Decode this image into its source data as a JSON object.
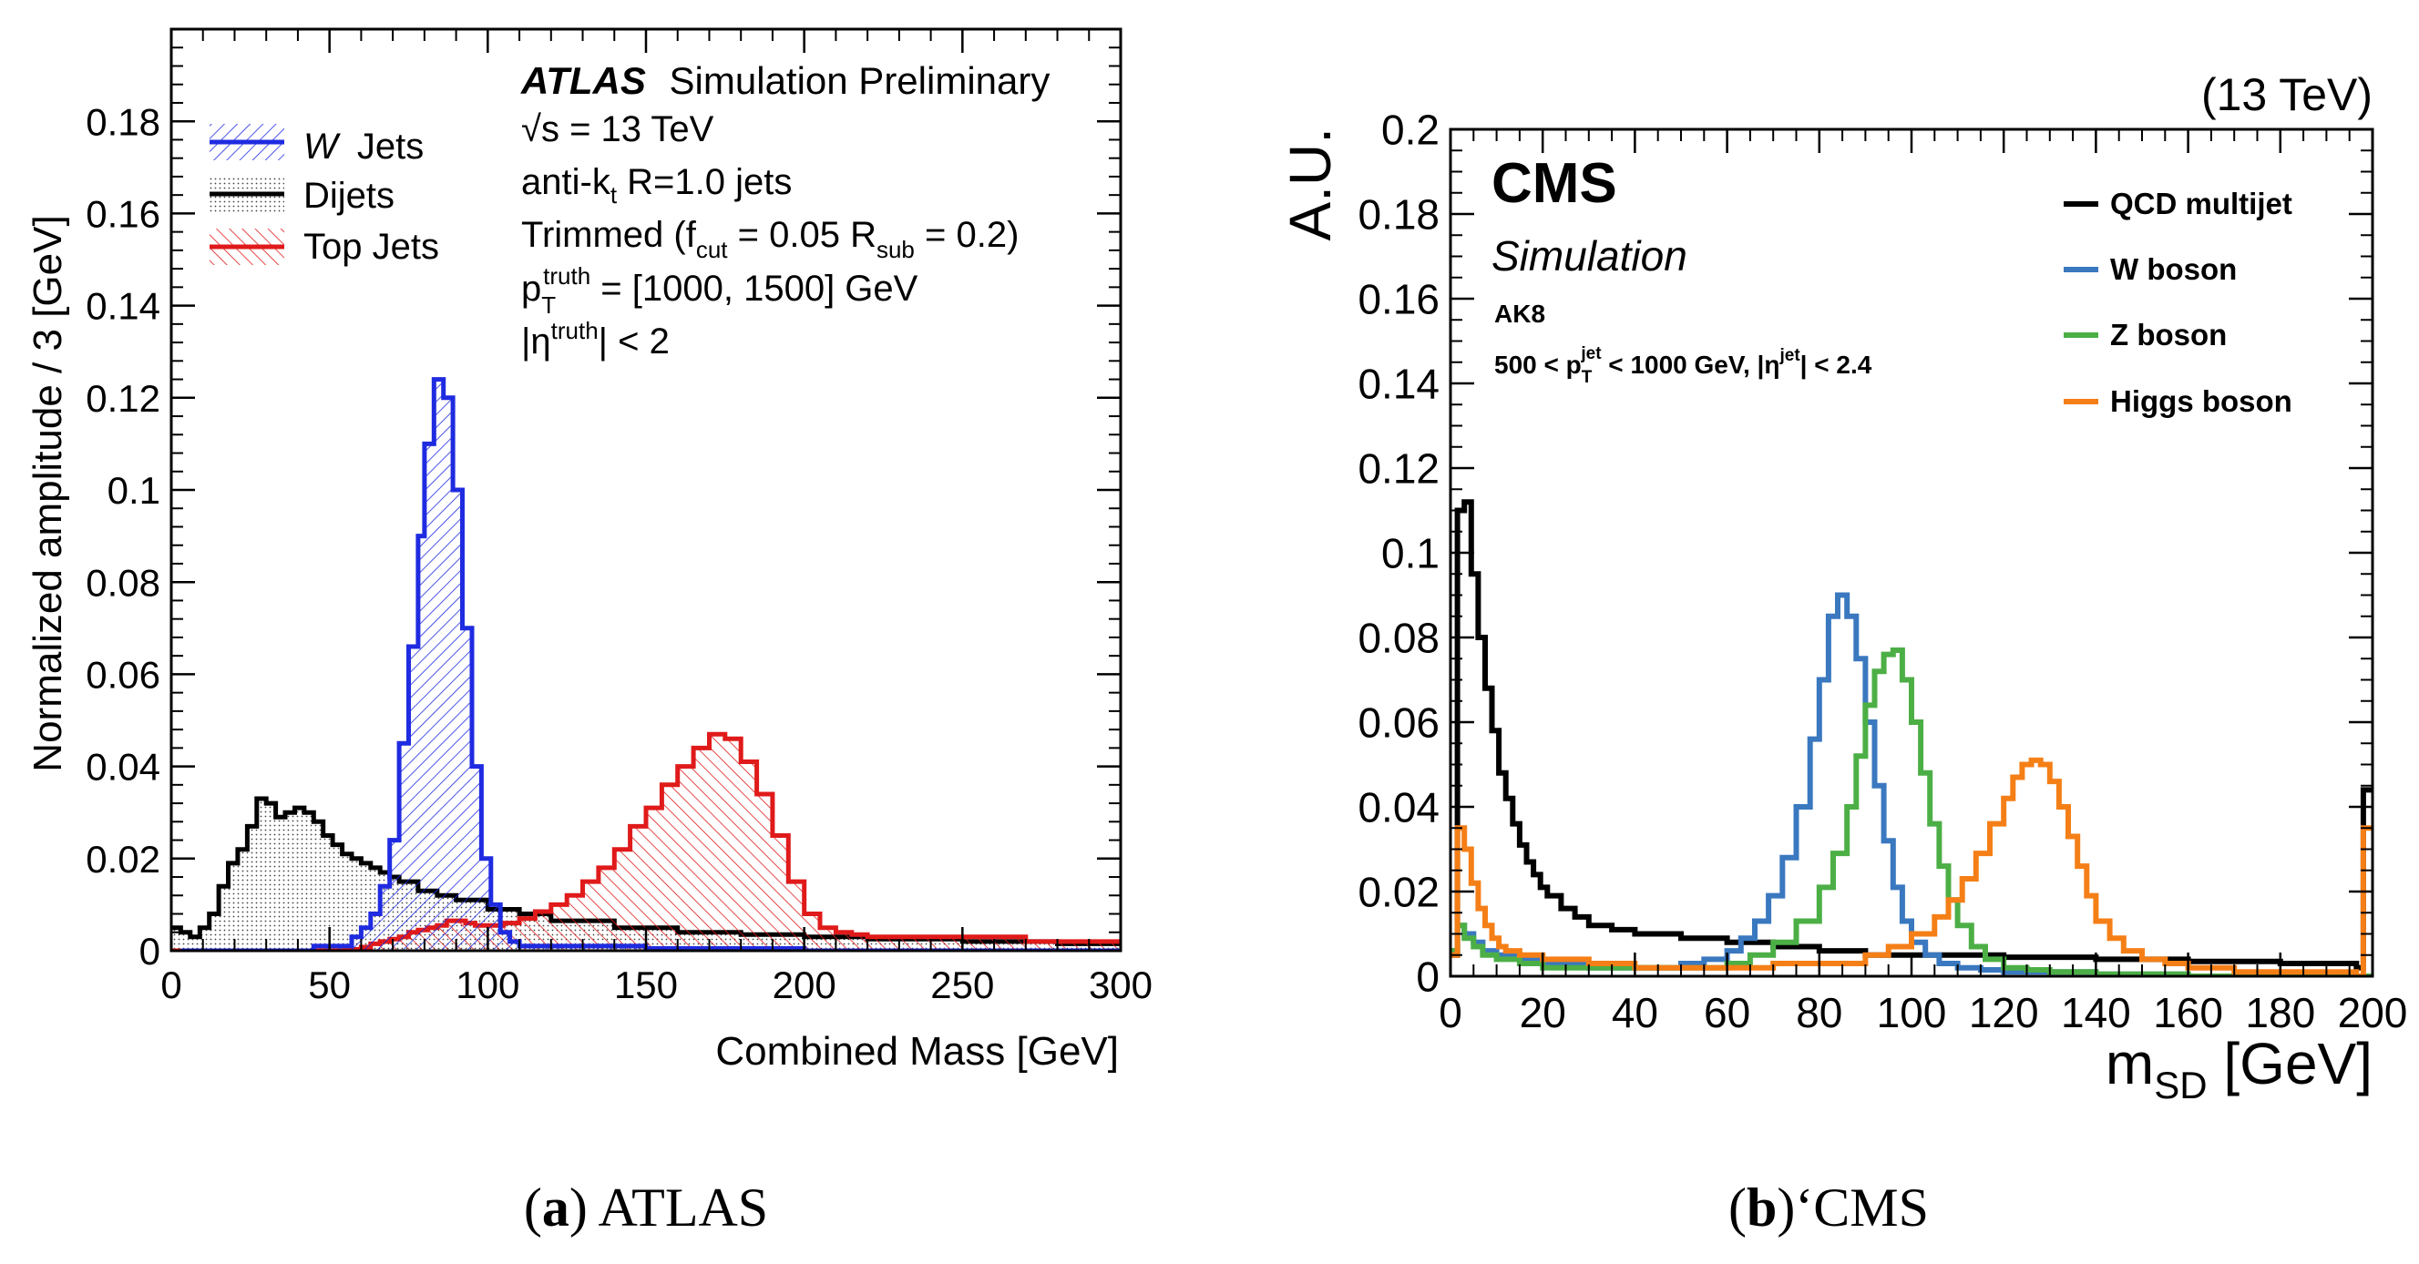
{
  "chart_data": [
    {
      "type": "line",
      "style": "filled-step-histogram",
      "caption_letter": "a",
      "caption_text": "ATLAS",
      "title": "",
      "experiment_label": "ATLAS",
      "experiment_sublabel": "Simulation Preliminary",
      "info_lines": [
        "√s = 13 TeV",
        "anti-k_t R=1.0 jets",
        "Trimmed (f_cut = 0.05 R_sub = 0.2)",
        "p_T^truth = [1000, 1500] GeV",
        "|η^truth| < 2"
      ],
      "xlabel": "Combined Mass [GeV]",
      "ylabel": "Normalized amplitude / 3 [GeV]",
      "xlim": [
        0,
        300
      ],
      "ylim": [
        0,
        0.2
      ],
      "x_ticks": [
        "0",
        "50",
        "100",
        "150",
        "200",
        "250",
        "300"
      ],
      "x_tick_values": [
        0,
        50,
        100,
        150,
        200,
        250,
        300
      ],
      "y_ticks": [
        "0",
        "0.02",
        "0.04",
        "0.06",
        "0.08",
        "0.1",
        "0.12",
        "0.14",
        "0.16",
        "0.18"
      ],
      "y_tick_values": [
        0,
        0.02,
        0.04,
        0.06,
        0.08,
        0.1,
        0.12,
        0.14,
        0.16,
        0.18
      ],
      "legend_position": "top-left",
      "bin_width": 3,
      "series": [
        {
          "name": "W Jets",
          "legend_label_italic": "W",
          "legend_label_rest": "Jets",
          "color": "#1f2be0",
          "hatch": "diagonal",
          "x": [
            3,
            30,
            45,
            57,
            60,
            63,
            66,
            69,
            72,
            75,
            78,
            80,
            83,
            86,
            89,
            92,
            95,
            98,
            101,
            104,
            107,
            110,
            150,
            200,
            260,
            300
          ],
          "y": [
            0.0,
            0.0,
            0.001,
            0.003,
            0.005,
            0.008,
            0.014,
            0.024,
            0.045,
            0.066,
            0.09,
            0.11,
            0.124,
            0.12,
            0.1,
            0.07,
            0.04,
            0.02,
            0.01,
            0.004,
            0.002,
            0.001,
            0.0005,
            0.0,
            0.0,
            0.0
          ]
        },
        {
          "name": "Dijets",
          "legend_label_rest": "Dijets",
          "color": "#000000",
          "hatch": "dots",
          "x": [
            0,
            3,
            6,
            9,
            12,
            15,
            18,
            21,
            24,
            27,
            30,
            33,
            36,
            39,
            42,
            45,
            48,
            51,
            54,
            57,
            60,
            63,
            66,
            69,
            72,
            78,
            84,
            90,
            100,
            110,
            120,
            140,
            160,
            180,
            200,
            220,
            250,
            280,
            300
          ],
          "y": [
            0.005,
            0.004,
            0.003,
            0.005,
            0.008,
            0.014,
            0.019,
            0.022,
            0.027,
            0.033,
            0.032,
            0.029,
            0.03,
            0.031,
            0.03,
            0.028,
            0.025,
            0.023,
            0.021,
            0.02,
            0.019,
            0.018,
            0.017,
            0.016,
            0.015,
            0.013,
            0.012,
            0.011,
            0.009,
            0.008,
            0.0065,
            0.005,
            0.004,
            0.0035,
            0.003,
            0.0025,
            0.002,
            0.0015,
            0.001
          ]
        },
        {
          "name": "Top Jets",
          "legend_label_rest": "Top Jets",
          "color": "#e01a1a",
          "hatch": "diagonal",
          "x": [
            0,
            50,
            55,
            60,
            63,
            66,
            69,
            72,
            75,
            78,
            81,
            84,
            87,
            90,
            93,
            96,
            100,
            105,
            110,
            115,
            120,
            125,
            130,
            135,
            140,
            145,
            150,
            155,
            160,
            165,
            170,
            175,
            180,
            185,
            190,
            195,
            200,
            205,
            210,
            215,
            220,
            240,
            270,
            300
          ],
          "y": [
            0.0,
            0.0,
            0.0003,
            0.0008,
            0.0015,
            0.002,
            0.0025,
            0.003,
            0.004,
            0.0045,
            0.005,
            0.0055,
            0.0065,
            0.0065,
            0.006,
            0.0055,
            0.0055,
            0.006,
            0.007,
            0.0085,
            0.01,
            0.012,
            0.015,
            0.018,
            0.022,
            0.027,
            0.031,
            0.036,
            0.04,
            0.044,
            0.047,
            0.046,
            0.041,
            0.034,
            0.025,
            0.015,
            0.008,
            0.005,
            0.004,
            0.0035,
            0.003,
            0.003,
            0.002,
            0.002
          ]
        }
      ]
    },
    {
      "type": "line",
      "style": "step-histogram",
      "caption_letter": "b",
      "caption_text": "CMS",
      "title": "",
      "experiment_label": "CMS",
      "experiment_sublabel": "Simulation",
      "energy_label": "(13 TeV)",
      "info_lines": [
        "AK8",
        "500 < p_T^jet < 1000 GeV, |η^jet| < 2.4"
      ],
      "xlabel": "m_SD [GeV]",
      "ylabel": "A.U.",
      "xlim": [
        0,
        200
      ],
      "ylim": [
        0,
        0.2
      ],
      "x_ticks": [
        "0",
        "20",
        "40",
        "60",
        "80",
        "100",
        "120",
        "140",
        "160",
        "180",
        "200"
      ],
      "x_tick_values": [
        0,
        20,
        40,
        60,
        80,
        100,
        120,
        140,
        160,
        180,
        200
      ],
      "y_ticks": [
        "0",
        "0.02",
        "0.04",
        "0.06",
        "0.08",
        "0.1",
        "0.12",
        "0.14",
        "0.16",
        "0.18",
        "0.2"
      ],
      "y_tick_values": [
        0,
        0.02,
        0.04,
        0.06,
        0.08,
        0.1,
        0.12,
        0.14,
        0.16,
        0.18,
        0.2
      ],
      "legend_position": "top-right",
      "bin_width": 1.5,
      "series": [
        {
          "name": "QCD multijet",
          "color": "#000000",
          "x": [
            0,
            1.5,
            3,
            4.5,
            6,
            7.5,
            9,
            10.5,
            12,
            13.5,
            15,
            16.5,
            18,
            19.5,
            21,
            24,
            27,
            30,
            35,
            40,
            50,
            60,
            70,
            80,
            90,
            100,
            120,
            140,
            160,
            180,
            196.5,
            198,
            199.5
          ],
          "y": [
            0.005,
            0.11,
            0.112,
            0.095,
            0.08,
            0.068,
            0.058,
            0.048,
            0.042,
            0.036,
            0.031,
            0.027,
            0.024,
            0.021,
            0.019,
            0.016,
            0.014,
            0.012,
            0.011,
            0.01,
            0.009,
            0.008,
            0.007,
            0.006,
            0.005,
            0.005,
            0.0045,
            0.004,
            0.0035,
            0.003,
            0.002,
            0.044,
            0.044
          ]
        },
        {
          "name": "W boson",
          "color": "#3a78bf",
          "x": [
            0,
            1.5,
            3,
            5,
            7,
            10,
            15,
            20,
            30,
            40,
            50,
            55,
            60,
            63,
            66,
            69,
            72,
            75,
            78,
            80,
            82,
            84,
            86,
            88,
            90,
            92,
            94,
            96,
            98,
            100,
            103,
            106,
            110,
            115,
            120,
            130,
            140,
            160,
            180,
            200
          ],
          "y": [
            0.006,
            0.012,
            0.01,
            0.008,
            0.006,
            0.005,
            0.004,
            0.003,
            0.002,
            0.002,
            0.003,
            0.004,
            0.006,
            0.009,
            0.013,
            0.019,
            0.028,
            0.04,
            0.056,
            0.07,
            0.085,
            0.09,
            0.085,
            0.075,
            0.06,
            0.045,
            0.032,
            0.021,
            0.013,
            0.008,
            0.005,
            0.003,
            0.002,
            0.0015,
            0.001,
            0.001,
            0.0005,
            0.0,
            0.0,
            0.0
          ]
        },
        {
          "name": "Z boson",
          "color": "#4caf46",
          "x": [
            0,
            1.5,
            3,
            5,
            7,
            10,
            15,
            20,
            30,
            40,
            50,
            60,
            65,
            70,
            75,
            80,
            83,
            86,
            88,
            90,
            92,
            94,
            96,
            98,
            100,
            102,
            104,
            106,
            108,
            110,
            113,
            116,
            120,
            125,
            130,
            140,
            160,
            180,
            200
          ],
          "y": [
            0.006,
            0.012,
            0.009,
            0.007,
            0.005,
            0.004,
            0.003,
            0.002,
            0.002,
            0.002,
            0.002,
            0.003,
            0.005,
            0.008,
            0.013,
            0.021,
            0.029,
            0.04,
            0.052,
            0.064,
            0.072,
            0.076,
            0.077,
            0.07,
            0.06,
            0.048,
            0.036,
            0.026,
            0.018,
            0.012,
            0.007,
            0.004,
            0.002,
            0.0015,
            0.001,
            0.0005,
            0.0,
            0.0,
            0.0
          ]
        },
        {
          "name": "Higgs boson",
          "color": "#f57f17",
          "x": [
            0,
            1.5,
            3,
            4.5,
            6,
            7.5,
            9,
            10.5,
            12,
            15,
            20,
            30,
            40,
            50,
            60,
            70,
            80,
            90,
            95,
            100,
            105,
            108,
            111,
            114,
            117,
            120,
            122,
            124,
            126,
            128,
            130,
            132,
            134,
            136,
            138,
            140,
            143,
            146,
            150,
            155,
            160,
            170,
            180,
            196.5,
            198,
            199.5
          ],
          "y": [
            0.005,
            0.035,
            0.03,
            0.022,
            0.016,
            0.012,
            0.009,
            0.007,
            0.006,
            0.005,
            0.004,
            0.003,
            0.002,
            0.002,
            0.002,
            0.003,
            0.003,
            0.005,
            0.007,
            0.01,
            0.014,
            0.018,
            0.023,
            0.029,
            0.036,
            0.042,
            0.047,
            0.05,
            0.051,
            0.05,
            0.046,
            0.04,
            0.033,
            0.026,
            0.019,
            0.013,
            0.009,
            0.006,
            0.004,
            0.003,
            0.002,
            0.001,
            0.001,
            0.0,
            0.035,
            0.035
          ]
        }
      ]
    }
  ]
}
